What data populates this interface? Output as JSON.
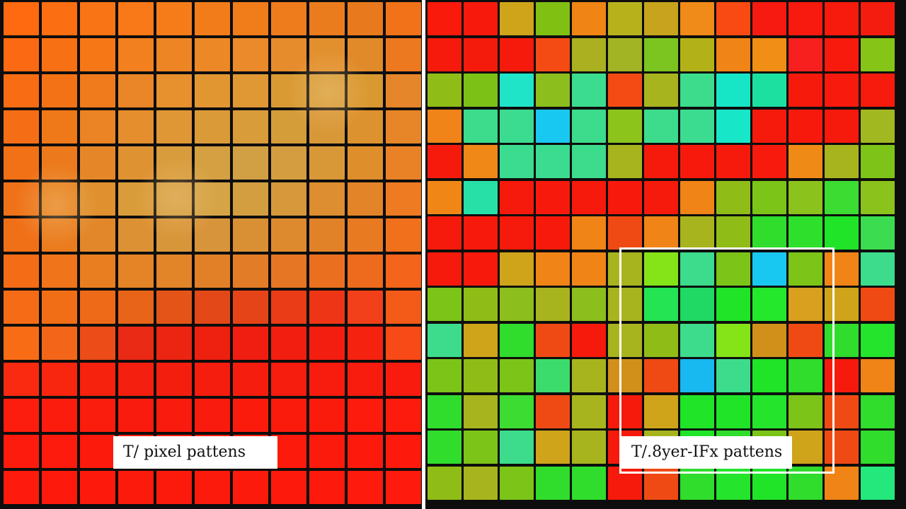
{
  "left_panel": {
    "caption": "T/ pixel pattens",
    "colors": [
      [
        "#ff6a10",
        "#fb6e12",
        "#f97415",
        "#f97818",
        "#f67c1a",
        "#f37c1a",
        "#f17c1a",
        "#ee7c1c",
        "#eb7c1e",
        "#e87a1d",
        "#f27219"
      ],
      [
        "#fb6a12",
        "#f87014",
        "#f57716",
        "#f2801e",
        "#ee8524",
        "#ec8826",
        "#eb8a2a",
        "#e68c2c",
        "#e2902e",
        "#e08a2a",
        "#ec7820"
      ],
      [
        "#f86c14",
        "#f47216",
        "#f07b1c",
        "#ea8628",
        "#e6902e",
        "#e29632",
        "#df9834",
        "#d99a34",
        "#d6a03c",
        "#d99830",
        "#e6862a"
      ],
      [
        "#f56e16",
        "#ef7818",
        "#ea8424",
        "#e48e2e",
        "#df9634",
        "#da9a38",
        "#d89c3a",
        "#d59c3a",
        "#d89838",
        "#dc922e",
        "#e68628"
      ],
      [
        "#f27016",
        "#ec7a1c",
        "#e58628",
        "#de9232",
        "#d89c3c",
        "#d4a042",
        "#d2a044",
        "#d49e40",
        "#d99838",
        "#df8e2c",
        "#e98226"
      ],
      [
        "#ef7218",
        "#e8801e",
        "#e0902e",
        "#d99c3a",
        "#d4a244",
        "#d4a446",
        "#d39e40",
        "#d6983a",
        "#dc8e30",
        "#e48428",
        "#ee7a22"
      ],
      [
        "#f07018",
        "#ea7c1e",
        "#e2882a",
        "#dc9234",
        "#d8963a",
        "#d8943a",
        "#d98f34",
        "#dd8a2e",
        "#e18228",
        "#e87a22",
        "#f1701c"
      ],
      [
        "#f46c16",
        "#ef741a",
        "#e97e20",
        "#e58426",
        "#e28428",
        "#e28028",
        "#e37c26",
        "#e67624",
        "#ea7020",
        "#ee6a1c",
        "#f4641a"
      ],
      [
        "#f66c16",
        "#f26e16",
        "#ee6a18",
        "#e86418",
        "#e45418",
        "#e24818",
        "#e44418",
        "#ea3c16",
        "#ee3616",
        "#f2401a",
        "#f45a18"
      ],
      [
        "#f86c16",
        "#f3661a",
        "#ec4c18",
        "#ea2a14",
        "#ec2412",
        "#ee2010",
        "#f01e10",
        "#f21e10",
        "#f41e10",
        "#f62210",
        "#f84a16"
      ],
      [
        "#fa2a10",
        "#f8260f",
        "#f6220e",
        "#f41f0e",
        "#f41e0e",
        "#f41d0e",
        "#f51d0e",
        "#f61c0e",
        "#f71c0e",
        "#f81c0e",
        "#f91c0e"
      ],
      [
        "#fc1d0e",
        "#fb1c0e",
        "#fa1c0d",
        "#f91b0d",
        "#f91b0d",
        "#f91b0d",
        "#fa1b0d",
        "#fa1b0d",
        "#fb1b0d",
        "#fc1b0d",
        "#fc1b0d"
      ],
      [
        "#fd1b0d",
        "#fc1b0d",
        "#fc1a0d",
        "#fb1a0d",
        "#fb1a0d",
        "#fb1a0d",
        "#fb1a0d",
        "#fc1a0d",
        "#fc1a0d",
        "#fd1a0d",
        "#fd1a0d"
      ],
      [
        "#fe1a0c",
        "#fd1a0c",
        "#fd1a0c",
        "#fc1a0c",
        "#fc1a0c",
        "#fc1a0c",
        "#fc1a0c",
        "#fd1a0c",
        "#fd1a0c",
        "#fe1a0c",
        "#fe1a0c"
      ]
    ]
  },
  "right_panel": {
    "caption": "T/.8yer-IFx pattens",
    "colors": [
      [
        "#fa1a0c",
        "#f71a0c",
        "#cfa41a",
        "#7fc012",
        "#f08414",
        "#b7b21c",
        "#c8a41e",
        "#f08a18",
        "#fa4a14",
        "#f71a10",
        "#f81a0e",
        "#f61b0d",
        "#f41c0e"
      ],
      [
        "#f61a0c",
        "#f41a0c",
        "#f61a0c",
        "#f44a14",
        "#aab020",
        "#a2b424",
        "#7cc420",
        "#b2b218",
        "#f08416",
        "#f08e16",
        "#f8201e",
        "#f81a0d",
        "#86c418"
      ],
      [
        "#90bc18",
        "#7cc216",
        "#20e4c8",
        "#8cbe1e",
        "#3cdc90",
        "#f44a14",
        "#a8b41e",
        "#3cdc8c",
        "#16e6c6",
        "#1ce0a0",
        "#f61a0c",
        "#f81a0d",
        "#f71b0d"
      ],
      [
        "#f08418",
        "#3cdc8c",
        "#3cdc90",
        "#18c8f0",
        "#3cdc8c",
        "#8cc41c",
        "#3cdc8c",
        "#3cdc90",
        "#18e6c8",
        "#f61a0c",
        "#f71a0c",
        "#f61a0c",
        "#a2b820"
      ],
      [
        "#f61a0c",
        "#f08818",
        "#3cdc90",
        "#3cdc90",
        "#3cdc8c",
        "#a8b41e",
        "#f61a0c",
        "#f71a0c",
        "#f61a0c",
        "#f81a0d",
        "#f08a16",
        "#a8b41e",
        "#7ec418"
      ],
      [
        "#f08616",
        "#26e0a8",
        "#f61a0c",
        "#f71a0c",
        "#f61a0c",
        "#f71a0c",
        "#f61a0c",
        "#f08416",
        "#90bc18",
        "#7cc418",
        "#8cc21c",
        "#3cdc32",
        "#8cc21c"
      ],
      [
        "#f61a0c",
        "#f71a0c",
        "#f61a0c",
        "#f71a0c",
        "#f08416",
        "#f04a14",
        "#f08416",
        "#a8b41e",
        "#90bc18",
        "#30dc2c",
        "#2ee02c",
        "#20e428",
        "#3cdc50"
      ],
      [
        "#f61a0c",
        "#f71a0c",
        "#cfa41a",
        "#f08416",
        "#f08416",
        "#a8b41e",
        "#84e418",
        "#3cdc8c",
        "#7cc418",
        "#18c8f0",
        "#7cc418",
        "#f08416",
        "#3cdc8c"
      ],
      [
        "#7cc418",
        "#90bc18",
        "#8cbe1e",
        "#a8b41e",
        "#8cbe1e",
        "#a8b41e",
        "#24e454",
        "#20d864",
        "#20e428",
        "#24e82c",
        "#d8a01e",
        "#cfa41a",
        "#f04a14"
      ],
      [
        "#3cdc8c",
        "#cfa41a",
        "#30dc2c",
        "#f04a14",
        "#f61a0c",
        "#a8b41e",
        "#90bc18",
        "#3cdc8c",
        "#84e418",
        "#d0901a",
        "#f04a14",
        "#30dc2c",
        "#24e42c"
      ],
      [
        "#7cc418",
        "#90bc18",
        "#7cc418",
        "#3cdc6c",
        "#a8b41e",
        "#d0901a",
        "#f04a14",
        "#18b8f0",
        "#3cdc8c",
        "#20e428",
        "#30dc2c",
        "#f61a0c",
        "#f08416"
      ],
      [
        "#30dc2c",
        "#a8b41e",
        "#3cdc32",
        "#f04a14",
        "#a8b41e",
        "#f61a0c",
        "#cfa41a",
        "#20e428",
        "#20e428",
        "#24e42c",
        "#7cc418",
        "#f04a14",
        "#30dc2c"
      ],
      [
        "#30dc2c",
        "#7cc418",
        "#3cdc8c",
        "#cfa41a",
        "#a8b41e",
        "#f61a0c",
        "#a8b41e",
        "#20e428",
        "#30dc2c",
        "#7cc418",
        "#cfa41a",
        "#f04a14",
        "#30dc2c"
      ],
      [
        "#90bc18",
        "#a8b41e",
        "#7cc418",
        "#30dc2c",
        "#30dc2c",
        "#f61a0c",
        "#f04a14",
        "#30dc2c",
        "#24e42c",
        "#20e428",
        "#30dc2c",
        "#f08416",
        "#24e87c"
      ]
    ]
  }
}
